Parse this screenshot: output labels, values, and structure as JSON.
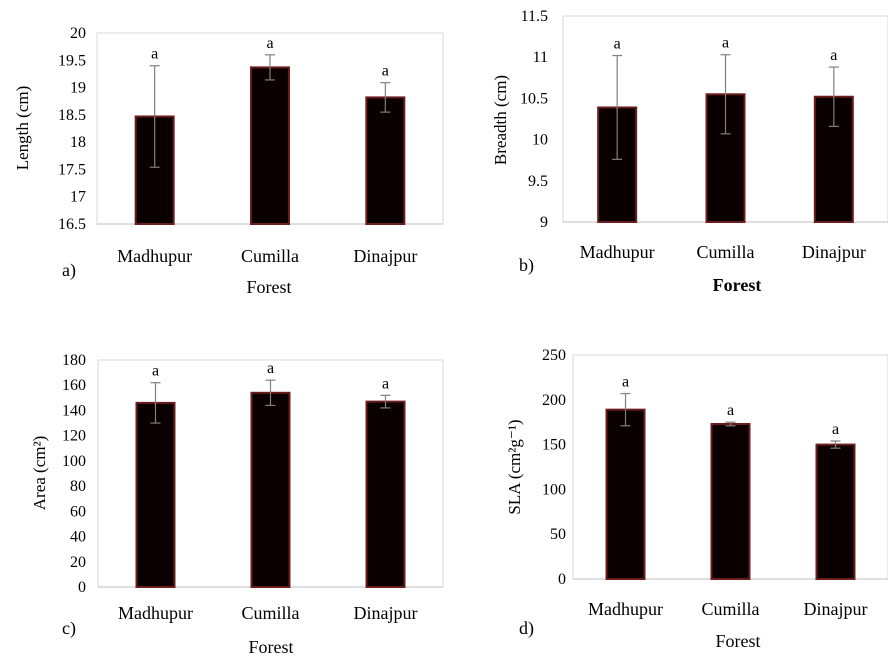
{
  "chart_data": [
    {
      "type": "bar",
      "panel_label": "a)",
      "categories": [
        "Madhupur",
        "Cumilla",
        "Dinajpur"
      ],
      "values": [
        18.47,
        19.37,
        18.82
      ],
      "errors": [
        0.93,
        0.23,
        0.27
      ],
      "significance": [
        "a",
        "a",
        "a"
      ],
      "xlabel": "Forest",
      "ylabel": "Length (cm)",
      "ylim": [
        16.5,
        20
      ],
      "yticks": [
        "16.5",
        "17",
        "17.5",
        "18",
        "18.5",
        "19",
        "19.5",
        "20"
      ],
      "grid": false,
      "bar_color": "#0a0000",
      "bar_edge_color": "#6b1d1d"
    },
    {
      "type": "bar",
      "panel_label": "b)",
      "categories": [
        "Madhupur",
        "Cumilla",
        "Dinajpur"
      ],
      "values": [
        10.39,
        10.55,
        10.52
      ],
      "errors": [
        0.63,
        0.48,
        0.36
      ],
      "significance": [
        "a",
        "a",
        "a"
      ],
      "xlabel": "Forest",
      "ylabel": "Breadth (cm)",
      "ylim": [
        9,
        11.5
      ],
      "yticks": [
        "9",
        "9.5",
        "10",
        "10.5",
        "11",
        "11.5"
      ],
      "grid": false,
      "bar_color": "#0a0000",
      "bar_edge_color": "#6b1d1d"
    },
    {
      "type": "bar",
      "panel_label": "c)",
      "categories": [
        "Madhupur",
        "Cumilla",
        "Dinajpur"
      ],
      "values": [
        146,
        154,
        147
      ],
      "errors": [
        16,
        10,
        5
      ],
      "significance": [
        "a",
        "a",
        "a"
      ],
      "xlabel": "Forest",
      "ylabel": "Area (cm²)",
      "ylim": [
        0,
        180
      ],
      "yticks": [
        "0",
        "20",
        "40",
        "60",
        "80",
        "100",
        "120",
        "140",
        "160",
        "180"
      ],
      "grid": false,
      "bar_color": "#0a0000",
      "bar_edge_color": "#6b1d1d"
    },
    {
      "type": "bar",
      "panel_label": "d)",
      "categories": [
        "Madhupur",
        "Cumilla",
        "Dinajpur"
      ],
      "values": [
        189,
        173,
        150
      ],
      "errors": [
        18,
        2,
        4
      ],
      "significance": [
        "a",
        "a",
        "a"
      ],
      "xlabel": "Forest",
      "ylabel": "SLA (cm²g⁻¹)",
      "ylim": [
        0,
        250
      ],
      "yticks": [
        "0",
        "50",
        "100",
        "150",
        "200",
        "250"
      ],
      "grid": false,
      "bar_color": "#0a0000",
      "bar_edge_color": "#6b1d1d"
    }
  ]
}
